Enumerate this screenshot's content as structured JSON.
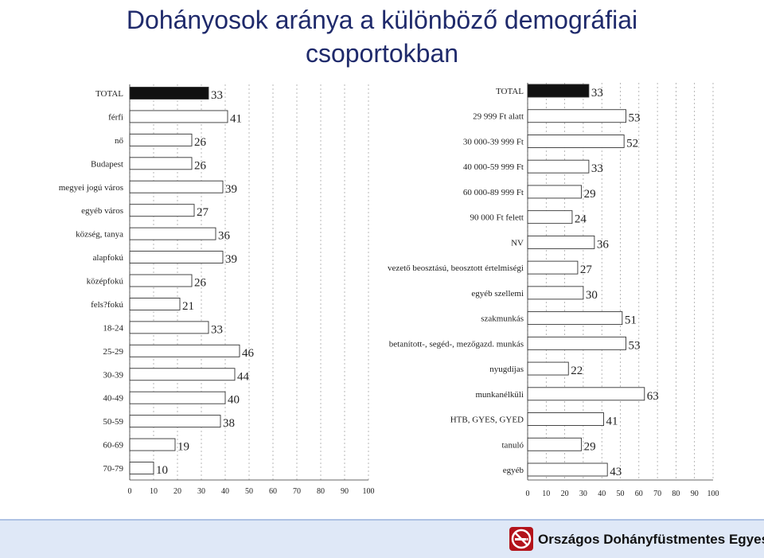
{
  "title": {
    "line1": "Dohányosok aránya a különböző demográfiai",
    "line2": "csoportokban"
  },
  "colors": {
    "bar_fill": "#ffffff",
    "bar_stroke": "#333333",
    "highlight_fill": "#111111",
    "grid": "#999999",
    "title": "#1f2a6b",
    "footer_bg": "#dfe8f7",
    "logo_red": "#b3131b"
  },
  "chart_data": [
    {
      "type": "bar",
      "orientation": "horizontal",
      "categories": [
        "TOTAL",
        "férfi",
        "nő",
        "Budapest",
        "megyei jogú város",
        "egyéb város",
        "község, tanya",
        "alapfokú",
        "középfokú",
        "fels?fokú",
        "18-24",
        "25-29",
        "30-39",
        "40-49",
        "50-59",
        "60-69",
        "70-79"
      ],
      "values": [
        33,
        41,
        26,
        26,
        39,
        27,
        36,
        39,
        26,
        21,
        33,
        46,
        44,
        40,
        38,
        19,
        10
      ],
      "highlight_index": 0,
      "xlim": [
        0,
        100
      ],
      "xticks": [
        "0",
        "10",
        "20",
        "30",
        "40",
        "50",
        "60",
        "70",
        "80",
        "90",
        "100"
      ],
      "grid": true
    },
    {
      "type": "bar",
      "orientation": "horizontal",
      "categories": [
        "TOTAL",
        "29 999 Ft alatt",
        "30 000-39 999 Ft",
        "40 000-59 999 Ft",
        "60 000-89 999 Ft",
        "90 000 Ft felett",
        "NV",
        "vezető beosztású, beosztott értelmiségi",
        "egyéb szellemi",
        "szakmunkás",
        "betanított-, segéd-, mezőgazd. munkás",
        "nyugdíjas",
        "munkanélküli",
        "HTB, GYES, GYED",
        "tanuló",
        "egyéb"
      ],
      "values": [
        33,
        53,
        52,
        33,
        29,
        24,
        36,
        27,
        30,
        51,
        53,
        22,
        63,
        41,
        29,
        43
      ],
      "highlight_index": 0,
      "xlim": [
        0,
        100
      ],
      "xticks": [
        "0",
        "10",
        "20",
        "30",
        "40",
        "50",
        "60",
        "70",
        "80",
        "90",
        "100"
      ],
      "grid": true
    }
  ],
  "footer": {
    "organization": "Országos Dohányfüstmentes Egyesület",
    "logo_icon": "no-smoking-icon"
  }
}
